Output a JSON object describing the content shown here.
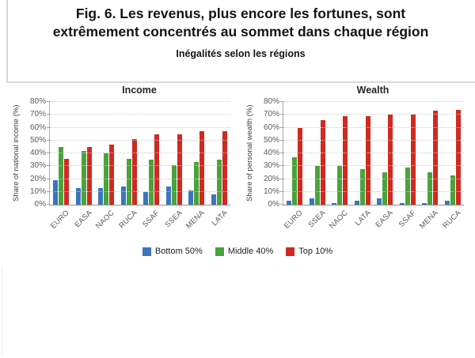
{
  "page": {
    "title_line1": "Fig. 6. Les revenus, plus encore les fortunes, sont",
    "title_line2": "extrêmement concentrés au sommet dans chaque région",
    "subtitle": "Inégalités selon les régions"
  },
  "legend": {
    "position": "bottom-center",
    "items": [
      {
        "label": "Bottom 50%",
        "color": "#3b76bc"
      },
      {
        "label": "Middle 40%",
        "color": "#4aa23b"
      },
      {
        "label": "Top 10%",
        "color": "#d02a20"
      }
    ]
  },
  "chart_data": [
    {
      "type": "bar",
      "title": "Income",
      "xlabel": "",
      "ylabel": "Share of national income (%)",
      "ylim": [
        0,
        80
      ],
      "ytick_step": 10,
      "ytick_suffix": "%",
      "grid": true,
      "categories": [
        "EURO",
        "EASA",
        "NAOC",
        "RUCA",
        "SSAF",
        "SSEA",
        "MENA",
        "LATA"
      ],
      "series": [
        {
          "name": "Bottom 50%",
          "color": "#3b76bc",
          "values": [
            19,
            13,
            13,
            14,
            10,
            14,
            11,
            8
          ]
        },
        {
          "name": "Middle 40%",
          "color": "#4aa23b",
          "values": [
            45,
            42,
            40,
            36,
            35,
            31,
            33,
            35
          ]
        },
        {
          "name": "Top 10%",
          "color": "#d02a20",
          "values": [
            36,
            45,
            47,
            51,
            55,
            55,
            57,
            57
          ]
        }
      ]
    },
    {
      "type": "bar",
      "title": "Wealth",
      "xlabel": "",
      "ylabel": "Share of personal wealth (%)",
      "ylim": [
        0,
        80
      ],
      "ytick_step": 10,
      "ytick_suffix": "%",
      "grid": true,
      "categories": [
        "EURO",
        "SSEA",
        "NAOC",
        "LATA",
        "EASA",
        "SSAF",
        "MENA",
        "RUCA"
      ],
      "series": [
        {
          "name": "Bottom 50%",
          "color": "#3b76bc",
          "values": [
            3,
            5,
            1,
            3,
            5,
            1,
            1,
            3
          ]
        },
        {
          "name": "Middle 40%",
          "color": "#4aa23b",
          "values": [
            37,
            30,
            30,
            28,
            25,
            29,
            25,
            23
          ]
        },
        {
          "name": "Top 10%",
          "color": "#d02a20",
          "values": [
            60,
            66,
            69,
            69,
            70,
            70,
            73,
            74
          ]
        }
      ]
    }
  ]
}
